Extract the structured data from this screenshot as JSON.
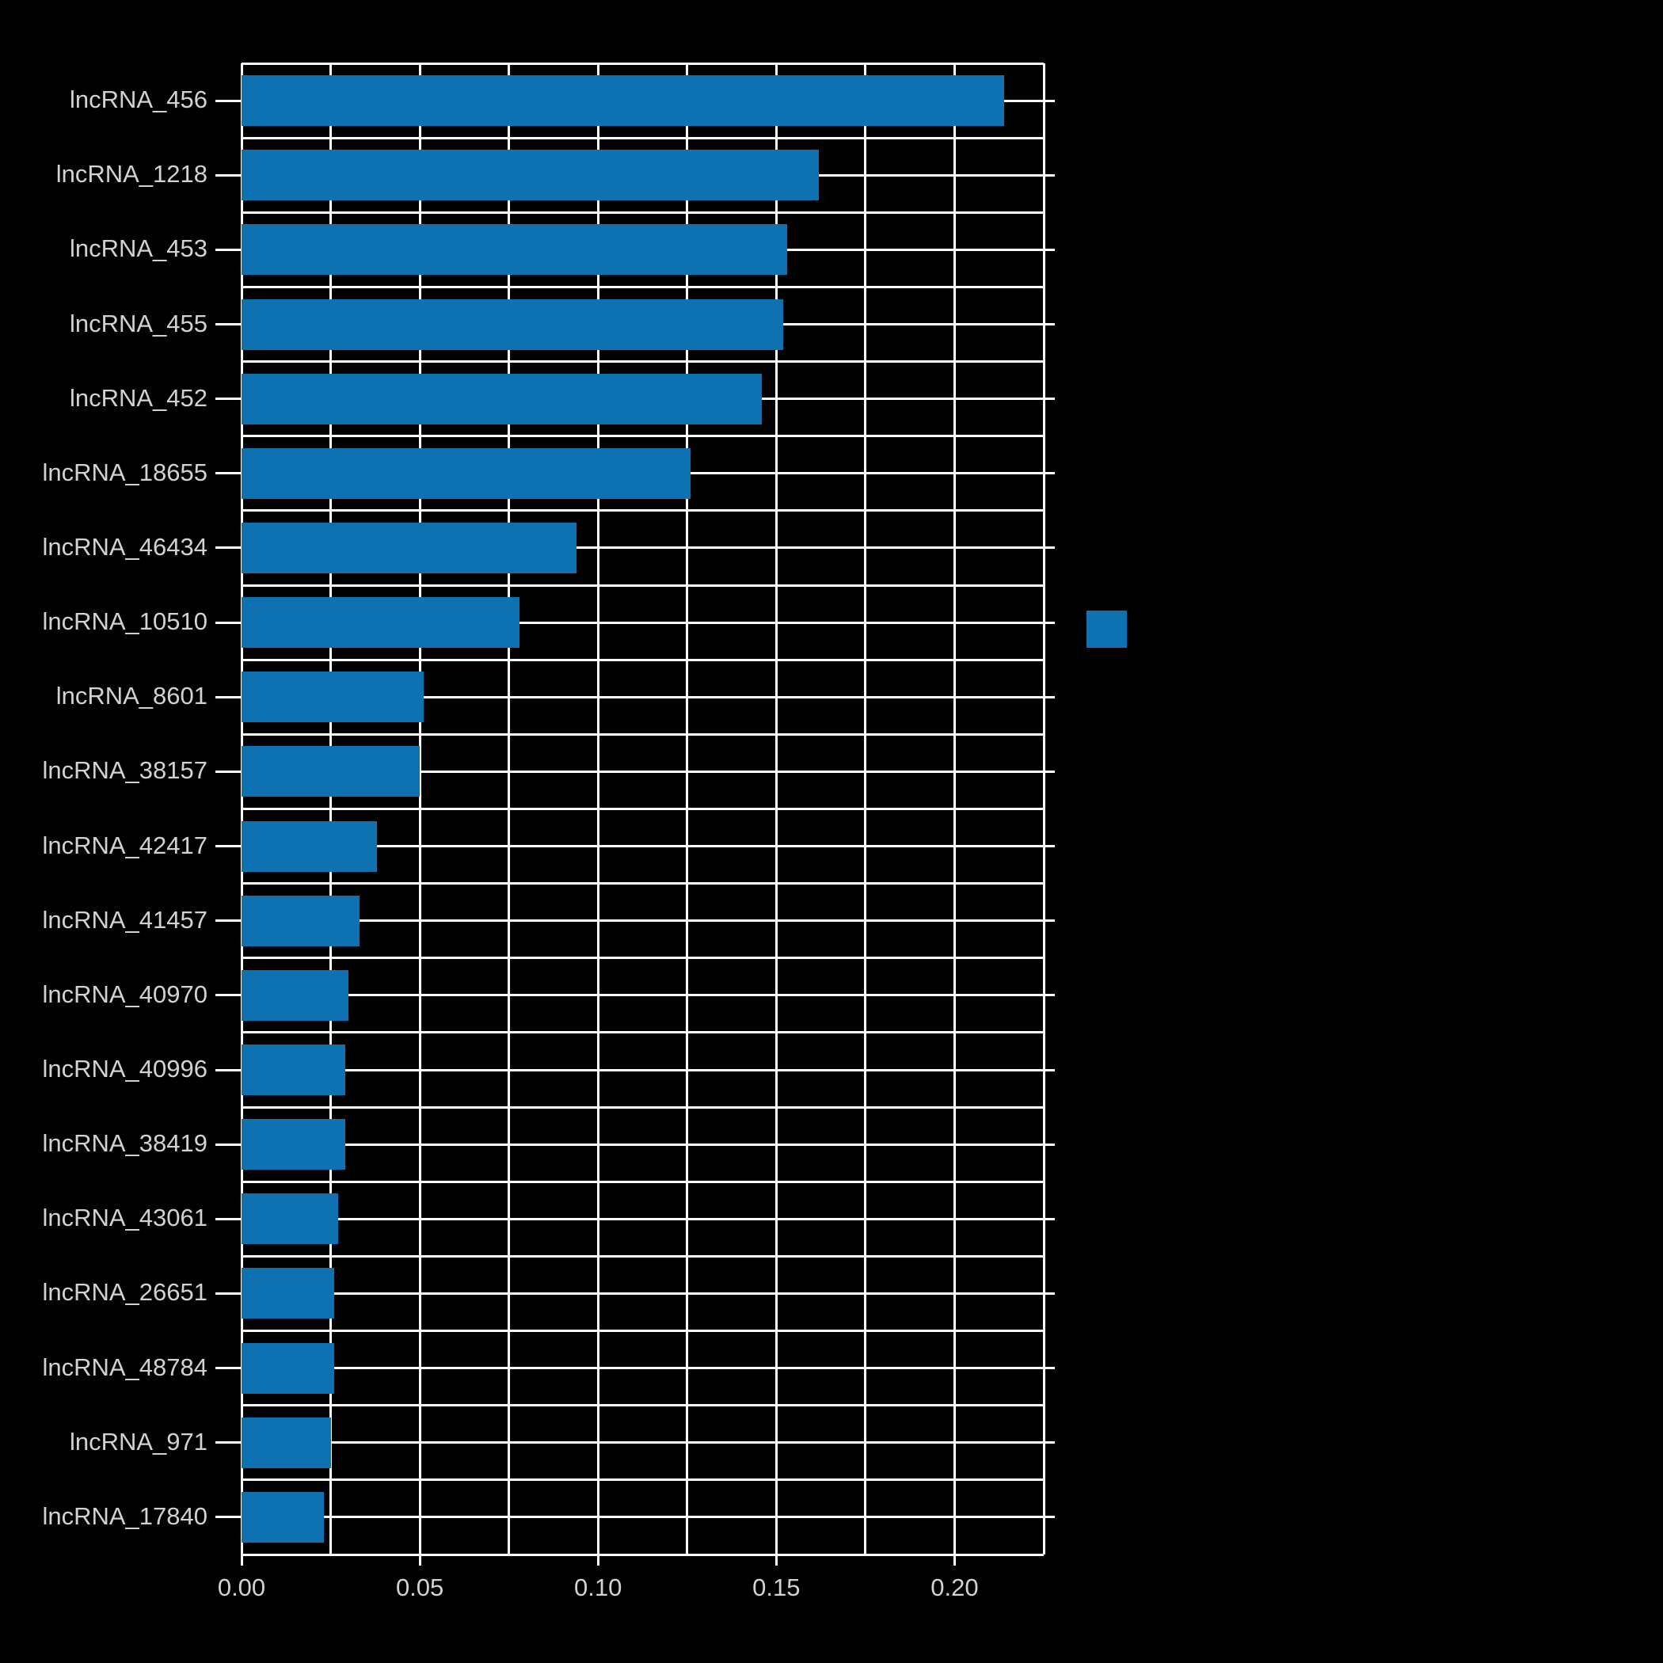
{
  "chart_data": {
    "type": "bar",
    "orientation": "horizontal",
    "title": "",
    "xlabel": "",
    "ylabel": "",
    "categories": [
      "lncRNA_456",
      "lncRNA_1218",
      "lncRNA_453",
      "lncRNA_455",
      "lncRNA_452",
      "lncRNA_18655",
      "lncRNA_46434",
      "lncRNA_10510",
      "lncRNA_8601",
      "lncRNA_38157",
      "lncRNA_42417",
      "lncRNA_41457",
      "lncRNA_40970",
      "lncRNA_40996",
      "lncRNA_38419",
      "lncRNA_43061",
      "lncRNA_26651",
      "lncRNA_48784",
      "lncRNA_971",
      "lncRNA_17840"
    ],
    "values": [
      0.214,
      0.162,
      0.153,
      0.152,
      0.146,
      0.126,
      0.094,
      0.078,
      0.051,
      0.05,
      0.038,
      0.033,
      0.03,
      0.029,
      0.029,
      0.027,
      0.026,
      0.026,
      0.025,
      0.023
    ],
    "xlim": [
      0,
      0.225
    ],
    "x_major_ticks": [
      0,
      0.05,
      0.1,
      0.15,
      0.2
    ],
    "x_tick_labels": [
      "0.00",
      "0.05",
      "0.10",
      "0.15",
      "0.20"
    ],
    "x_minor_step": 0.025,
    "grid": true,
    "legend_position": "right",
    "legend_labels": [
      ""
    ],
    "colors": {
      "bar": "#0e72b2",
      "background": "#000000",
      "grid": "#ffffff",
      "text": "#d2d2d2"
    }
  }
}
